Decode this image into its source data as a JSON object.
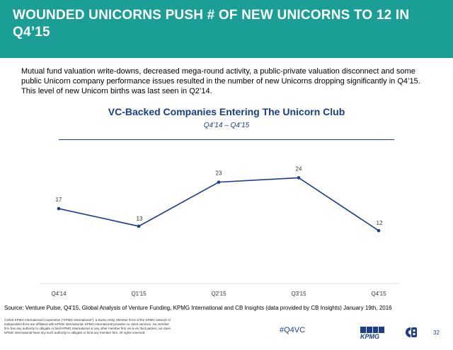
{
  "header": {
    "title": "WOUNDED UNICORNS PUSH # OF NEW UNICORNS TO 12 IN Q4’15"
  },
  "intro": "Mutual fund valuation write-downs, decreased mega-round activity, a public-private valuation disconnect and some public Unicorn company performance issues resulted in the number of new Unicorns dropping significantly in Q4’15. This level of new Unicorn births was last seen in Q2’14.",
  "chart_data": {
    "type": "line",
    "title": "VC-Backed Companies Entering The Unicorn Club",
    "subtitle": "Q4’14 – Q4’15",
    "categories": [
      "Q4'14",
      "Q1'15",
      "Q2'15",
      "Q3'15",
      "Q4'15"
    ],
    "series": [
      {
        "values": [
          17,
          13,
          23,
          24,
          12
        ]
      }
    ],
    "ylim": [
      0,
      30
    ],
    "grid": false,
    "show_y_axis": false,
    "line_color": "#1a3d8c"
  },
  "footer": {
    "source": "Source: Venture Pulse, Q4'15, Global Analysis of Venture Funding, KPMG International and CB Insights (data provided by CB Insights) January 19th, 2016",
    "legal": "©2016 KPMG International Cooperative (\"KPMG International\"), a Swiss entity. Member firms of the KPMG network of independent firms are affiliated with KPMG International. KPMG International provides no client services. No member firm has any authority to obligate or bind KPMG International or any other member firm vis-à-vis third parties, nor does KPMG International have any such authority to obligate or bind any member firm. All rights reserved.",
    "hashtag": "#Q4VC",
    "kpmg_logo_text": "KPMG",
    "page_number": "32"
  },
  "colors": {
    "banner": "#1a9e96",
    "accent": "#1a3d8c"
  }
}
